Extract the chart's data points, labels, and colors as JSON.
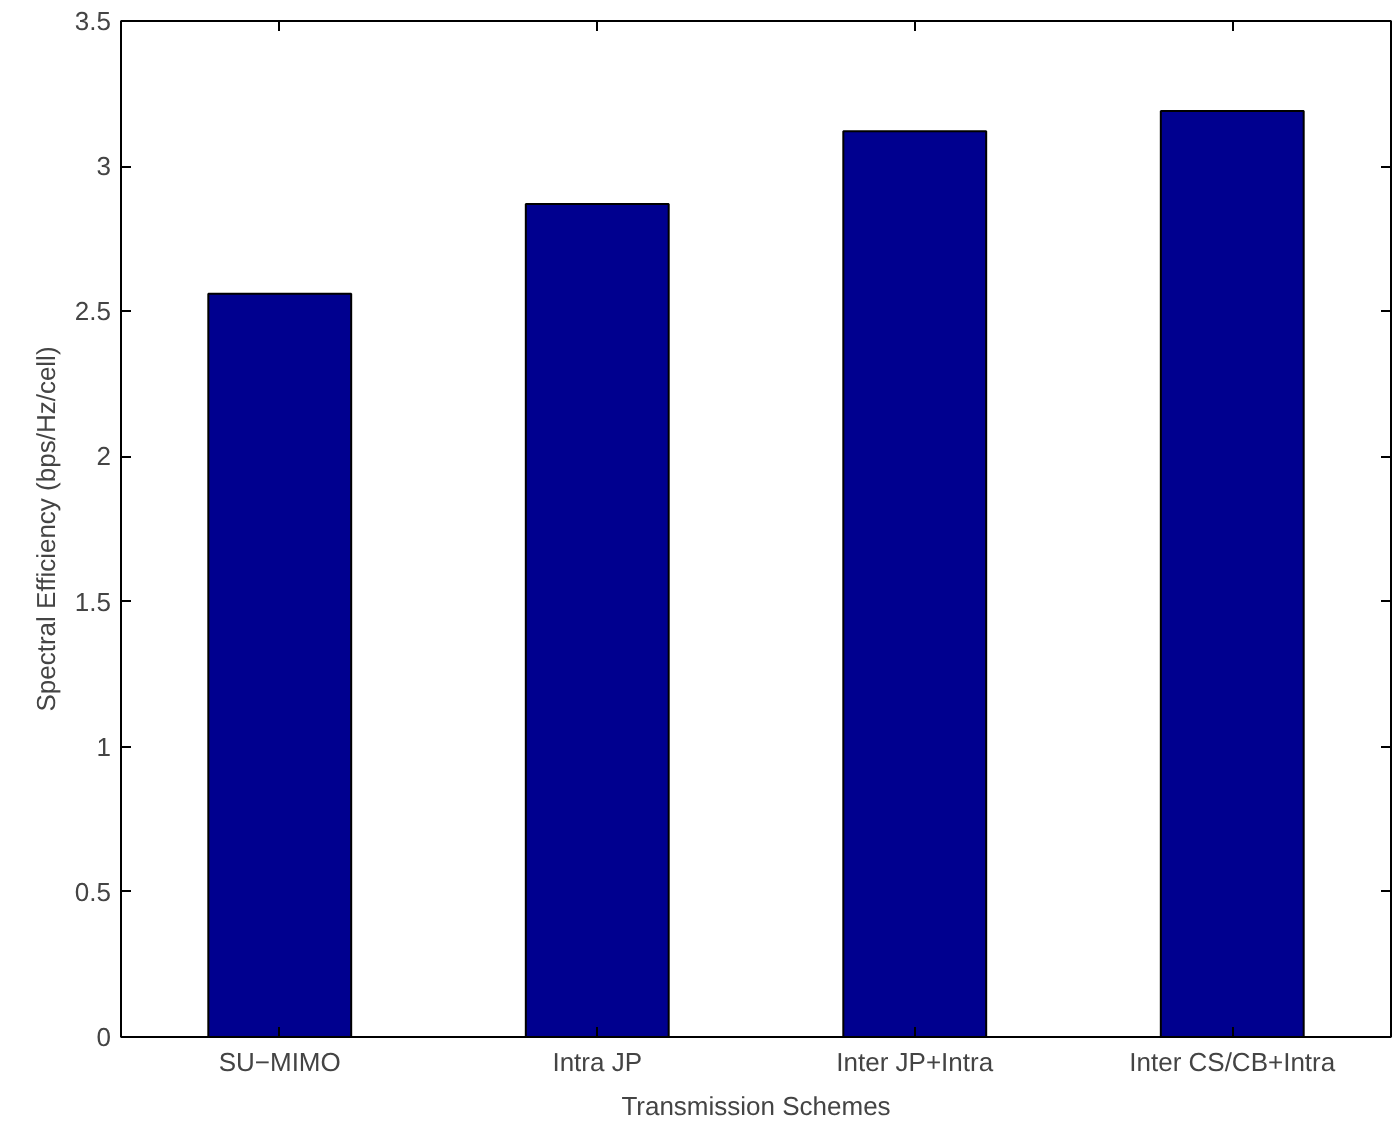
{
  "chart_data": {
    "type": "bar",
    "xlabel": "Transmission Schemes",
    "ylabel": "Spectral Efficiency (bps/Hz/cell)",
    "categories": [
      "SU−MIMO",
      "Intra JP",
      "Inter JP+Intra",
      "Inter CS/CB+Intra"
    ],
    "values": [
      2.56,
      2.87,
      3.12,
      3.19
    ],
    "color": "#00008f",
    "ylim": [
      0,
      3.5
    ],
    "yticks": [
      0,
      0.5,
      1,
      1.5,
      2,
      2.5,
      3,
      3.5
    ],
    "grid": false
  }
}
